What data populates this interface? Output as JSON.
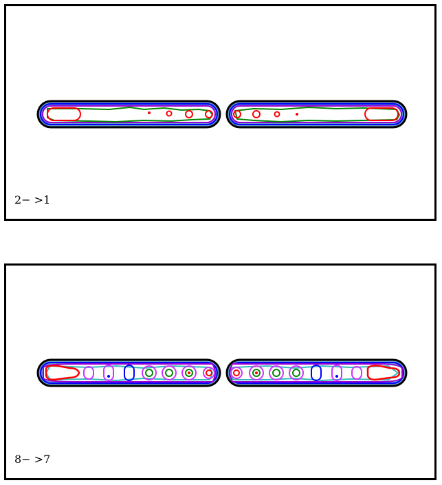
{
  "panels": [
    {
      "label": "2− >1"
    },
    {
      "label": "8− >7"
    }
  ],
  "colors": {
    "outer": "#000000",
    "fill": "#6699cc",
    "blue": "#0000ff",
    "purple": "#9900cc",
    "violet": "#cc33ff",
    "cyan": "#33bbbb",
    "green": "#008800",
    "red": "#ff0000"
  }
}
